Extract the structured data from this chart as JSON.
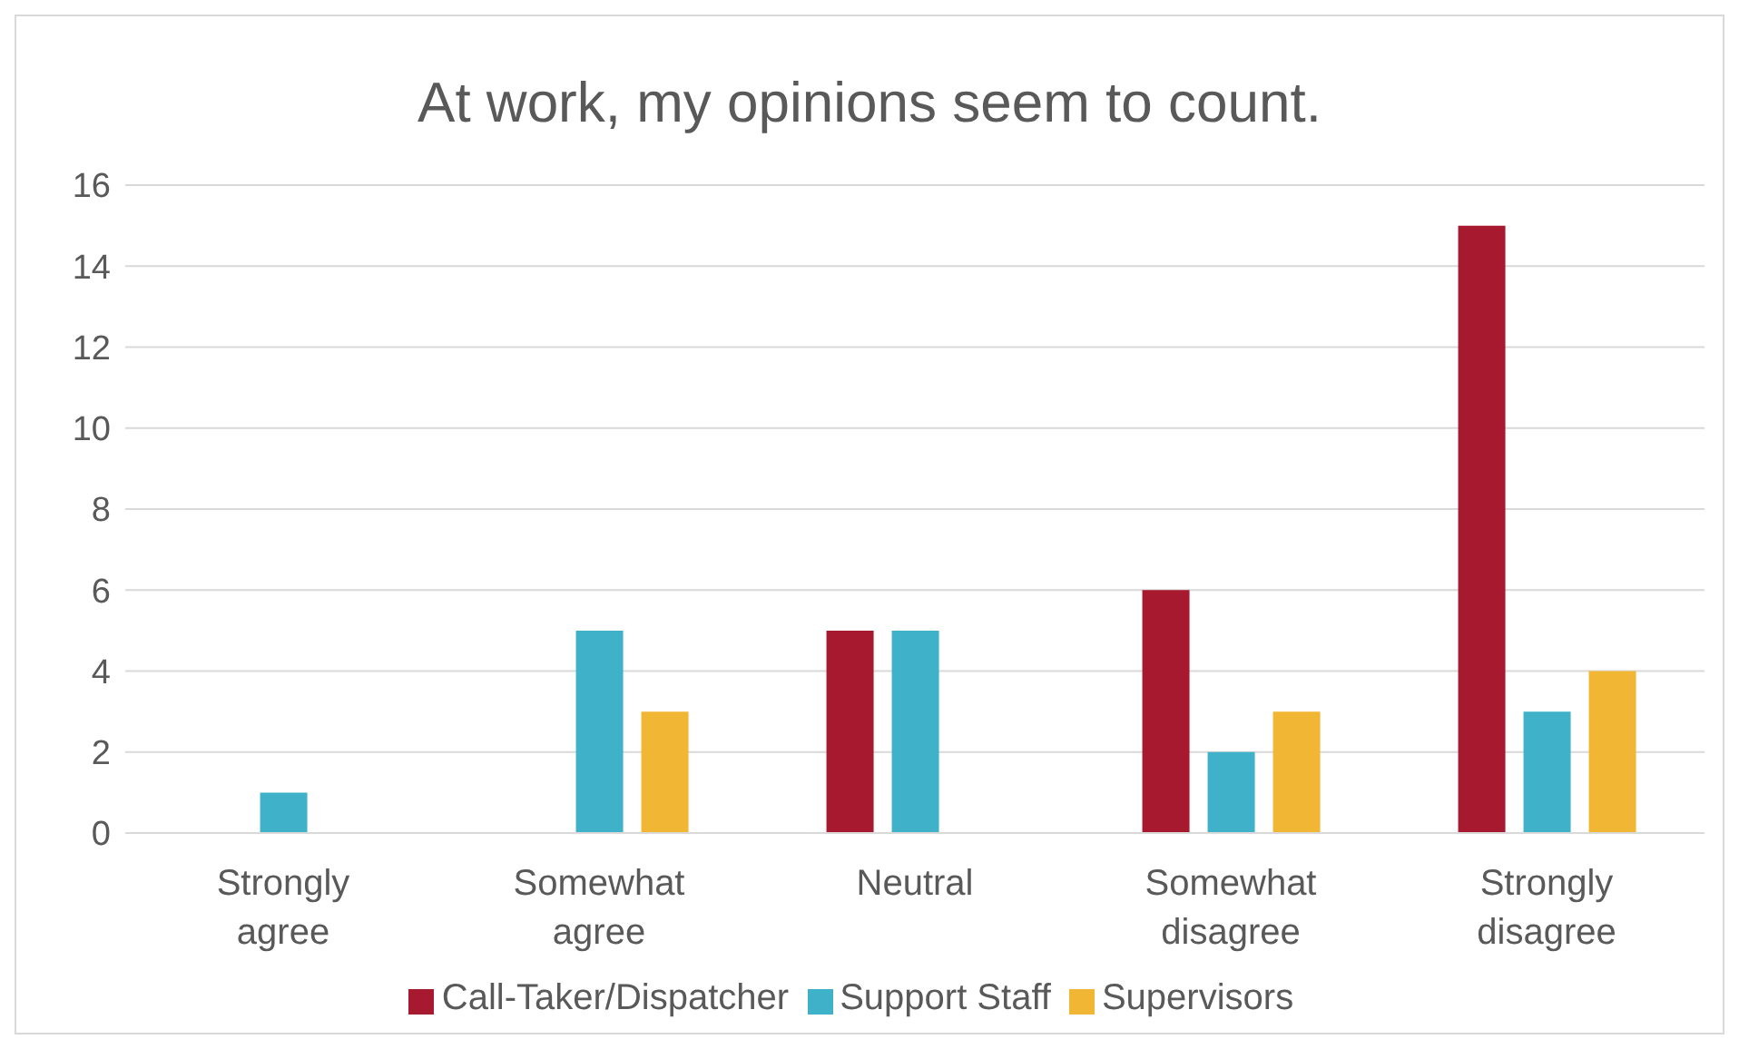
{
  "chart_data": {
    "type": "bar",
    "title": "At work, my opinions seem to count.",
    "categories": [
      "Strongly agree",
      "Somewhat agree",
      "Neutral",
      "Somewhat disagree",
      "Strongly disagree"
    ],
    "series": [
      {
        "name": "Call-Taker/Dispatcher",
        "color": "#a6192e",
        "values": [
          0,
          0,
          5,
          6,
          15
        ]
      },
      {
        "name": "Support Staff",
        "color": "#3fb1c9",
        "values": [
          1,
          5,
          5,
          2,
          3
        ]
      },
      {
        "name": "Supervisors",
        "color": "#f2b635",
        "values": [
          0,
          3,
          0,
          3,
          4
        ]
      }
    ],
    "ylim": [
      0,
      16
    ],
    "yticks": [
      0,
      2,
      4,
      6,
      8,
      10,
      12,
      14,
      16
    ],
    "grid": "y",
    "legend": "bottom"
  }
}
